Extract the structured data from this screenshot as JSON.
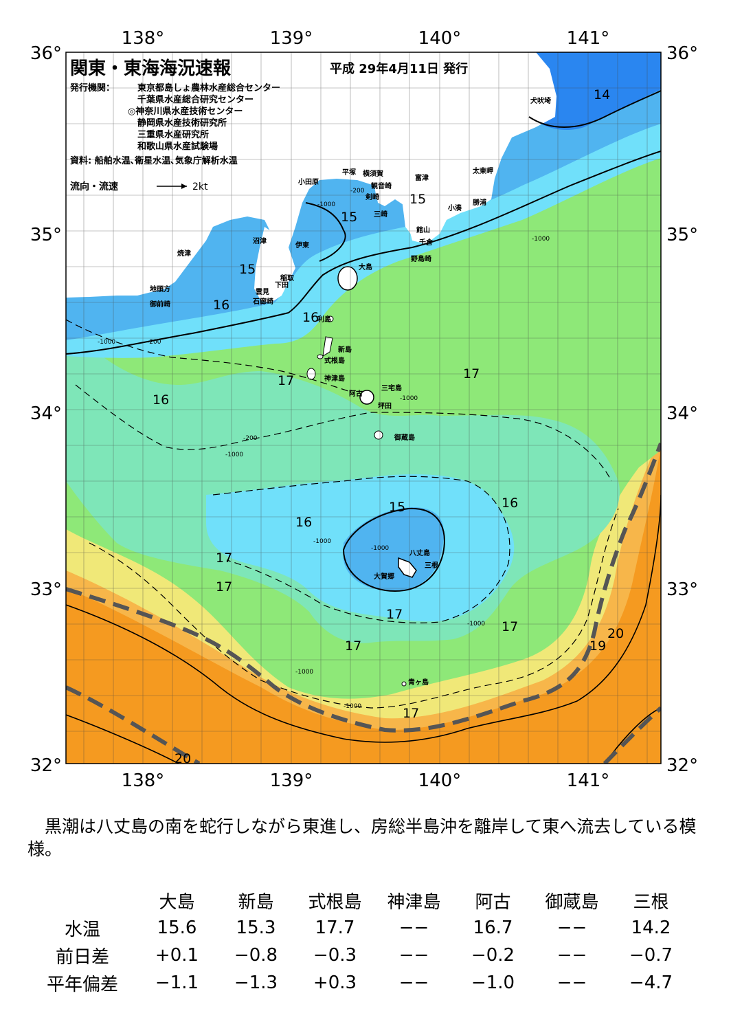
{
  "header": {
    "title": "関東・東海海況速報",
    "issue_date": "平成  29年4月11日  発行",
    "publisher_label": "発行機関：",
    "publishers": [
      "東京都島しょ農林水産総合センター",
      "千葉県水産総合研究センター",
      "◎神奈川県水産技術センター",
      "静岡県水産技術研究所",
      "三重県水産研究所",
      "和歌山県水産試験場"
    ],
    "source": "資料: 船舶水温､衛星水温､気象庁解析水温",
    "flow_legend": "流向・流速",
    "flow_scale": "2kt"
  },
  "axes": {
    "lon_labels": [
      "138°",
      "139°",
      "140°",
      "141°"
    ],
    "lat_labels": [
      "36°",
      "35°",
      "34°",
      "33°",
      "32°"
    ]
  },
  "places": [
    "犬吠埼",
    "太東岬",
    "勝浦",
    "小湊",
    "富津",
    "観音崎",
    "剣崎",
    "三崎",
    "横須賀",
    "平塚",
    "小田原",
    "館山",
    "千倉",
    "野島崎",
    "大島",
    "伊東",
    "沼津",
    "焼津",
    "稲取",
    "下田",
    "雲見",
    "石廊崎",
    "地頭方",
    "御前崎",
    "利島",
    "新島",
    "式根島",
    "神津島",
    "三宅島",
    "阿古",
    "坪田",
    "御蔵島",
    "八丈島",
    "三根",
    "大賀郷",
    "青ヶ島"
  ],
  "isotherm_labels": [
    "14",
    "15",
    "15",
    "15",
    "15",
    "16",
    "16",
    "16",
    "16",
    "16",
    "17",
    "17",
    "17",
    "17",
    "17",
    "17",
    "17",
    "17",
    "19",
    "20",
    "20"
  ],
  "depth_labels": [
    "-200",
    "-1000"
  ],
  "colors": {
    "t_le14": "#2a86f0",
    "t_14_15": "#50b4f0",
    "t_15_16": "#70e0fa",
    "t_16_17": "#7ee6b8",
    "t_17_18": "#8ee878",
    "t_18_19": "#f0e878",
    "t_19_20": "#f7b64a",
    "t_ge20": "#f59a20",
    "kuroshio_axis": "#555555"
  },
  "summary": "黒潮は八丈島の南を蛇行しながら東進し、房総半島沖を離岸して東へ流去している模様。",
  "table": {
    "columns": [
      "大島",
      "新島",
      "式根島",
      "神津島",
      "阿古",
      "御蔵島",
      "三根"
    ],
    "rows": [
      {
        "label": "水温",
        "values": [
          "15.6",
          "15.3",
          "17.7",
          "−−",
          "16.7",
          "−−",
          "14.2"
        ]
      },
      {
        "label": "前日差",
        "values": [
          "+0.1",
          "−0.8",
          "−0.3",
          "−−",
          "−0.2",
          "−−",
          "−0.7"
        ]
      },
      {
        "label": "平年偏差",
        "values": [
          "−1.1",
          "−1.3",
          "+0.3",
          "−−",
          "−1.0",
          "−−",
          "−4.7"
        ]
      }
    ]
  }
}
